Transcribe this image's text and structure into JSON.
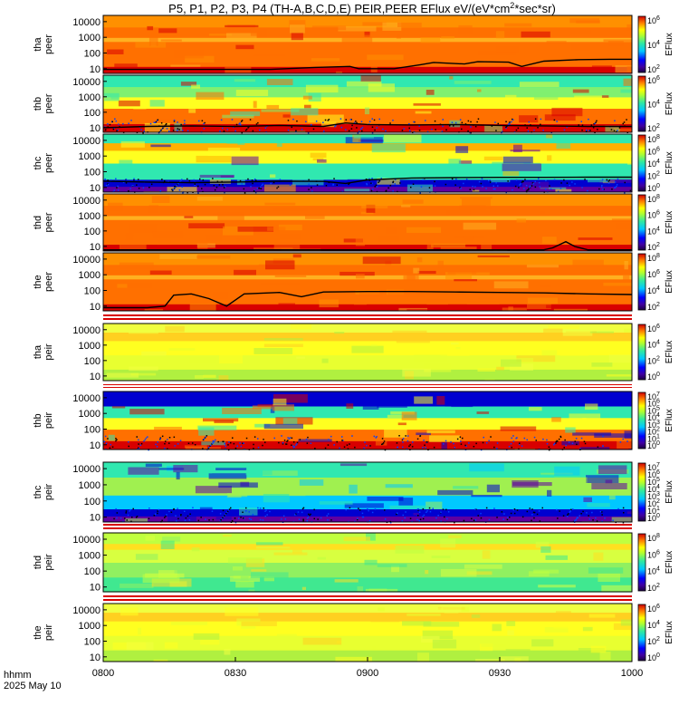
{
  "title": "P5, P1, P2, P3, P4 (TH-A,B,C,D,E) PEIR,PEER EFlux eV/(eV*cm",
  "title_sup": "2",
  "title_tail": "*sec*sr)",
  "colors": {
    "red": "#d80000",
    "orange": "#ff7000",
    "yellow": "#ffff20",
    "green": "#30e8b0",
    "cyan": "#00c8ff",
    "blue": "#0000d0",
    "purple": "#6000a0"
  },
  "chart_data": {
    "type": "heatmap",
    "x_axis": {
      "ticks": [
        "0800",
        "0830",
        "0900",
        "0930",
        "1000"
      ],
      "corner_label": "hhmm",
      "date_label": "2025 May 10",
      "range": [
        "08:00",
        "10:00"
      ]
    },
    "y_axis": {
      "scale": "log",
      "range": [
        5,
        25000
      ],
      "ticks": [
        "10",
        "100",
        "1000",
        "10000"
      ]
    },
    "colorbar_title": "EFlux",
    "panels": [
      {
        "probe": "tha",
        "species": "peer",
        "dominant": "orange",
        "cbar_ticks": [
          {
            "b": "10",
            "e": "6"
          },
          {
            "b": "10",
            "e": "4"
          },
          {
            "b": "10",
            "e": "2"
          }
        ],
        "line": [
          [
            0,
            9
          ],
          [
            30,
            9
          ],
          [
            38,
            9
          ],
          [
            48,
            12
          ],
          [
            56,
            14
          ],
          [
            58,
            10
          ],
          [
            66,
            10
          ],
          [
            72,
            18
          ],
          [
            75,
            25
          ],
          [
            82,
            20
          ],
          [
            85,
            28
          ],
          [
            92,
            26
          ],
          [
            95,
            14
          ],
          [
            100,
            30
          ],
          [
            108,
            38
          ],
          [
            115,
            40
          ],
          [
            120,
            40
          ]
        ]
      },
      {
        "probe": "thb",
        "species": "peer",
        "dominant": "mixed",
        "cbar_ticks": [
          {
            "b": "10",
            "e": "6"
          },
          {
            "b": "10",
            "e": "4"
          },
          {
            "b": "10",
            "e": "2"
          }
        ],
        "line": [
          [
            0,
            10
          ],
          [
            10,
            12
          ],
          [
            20,
            13
          ],
          [
            30,
            12
          ],
          [
            40,
            14
          ],
          [
            50,
            12
          ],
          [
            55,
            20
          ],
          [
            60,
            16
          ],
          [
            70,
            15
          ],
          [
            80,
            16
          ],
          [
            90,
            14
          ],
          [
            100,
            13
          ],
          [
            110,
            12
          ],
          [
            120,
            12
          ]
        ]
      },
      {
        "probe": "thc",
        "species": "peer",
        "dominant": "mixed",
        "cbar_ticks": [
          {
            "b": "10",
            "e": "8"
          },
          {
            "b": "10",
            "e": "6"
          },
          {
            "b": "10",
            "e": "4"
          },
          {
            "b": "10",
            "e": "2"
          },
          {
            "b": "10",
            "e": "0"
          }
        ],
        "line": [
          [
            0,
            25
          ],
          [
            10,
            22
          ],
          [
            20,
            20
          ],
          [
            30,
            22
          ],
          [
            40,
            25
          ],
          [
            50,
            24
          ],
          [
            55,
            18
          ],
          [
            60,
            30
          ],
          [
            70,
            40
          ],
          [
            80,
            42
          ],
          [
            90,
            44
          ],
          [
            100,
            44
          ],
          [
            110,
            45
          ],
          [
            120,
            45
          ]
        ]
      },
      {
        "probe": "thd",
        "species": "peer",
        "dominant": "orange",
        "cbar_ticks": [
          {
            "b": "10",
            "e": "8"
          },
          {
            "b": "10",
            "e": "6"
          },
          {
            "b": "10",
            "e": "4"
          },
          {
            "b": "10",
            "e": "2"
          }
        ],
        "line": [
          [
            0,
            6
          ],
          [
            100,
            6
          ],
          [
            102,
            8
          ],
          [
            105,
            20
          ],
          [
            107,
            10
          ],
          [
            110,
            6
          ],
          [
            120,
            6
          ]
        ]
      },
      {
        "probe": "the",
        "species": "peer",
        "dominant": "orange",
        "cbar_ticks": [
          {
            "b": "10",
            "e": "8"
          },
          {
            "b": "10",
            "e": "6"
          },
          {
            "b": "10",
            "e": "4"
          },
          {
            "b": "10",
            "e": "2"
          }
        ],
        "line": [
          [
            0,
            8
          ],
          [
            10,
            8
          ],
          [
            14,
            10
          ],
          [
            16,
            50
          ],
          [
            20,
            60
          ],
          [
            24,
            30
          ],
          [
            28,
            10
          ],
          [
            32,
            60
          ],
          [
            40,
            75
          ],
          [
            45,
            40
          ],
          [
            50,
            80
          ],
          [
            60,
            85
          ],
          [
            70,
            85
          ],
          [
            80,
            80
          ],
          [
            90,
            75
          ],
          [
            100,
            70
          ],
          [
            110,
            60
          ],
          [
            120,
            55
          ]
        ]
      },
      {
        "probe": "tha",
        "species": "peir",
        "dominant": "yellow",
        "cbar_ticks": [
          {
            "b": "10",
            "e": "6"
          },
          {
            "b": "10",
            "e": "4"
          },
          {
            "b": "10",
            "e": "2"
          },
          {
            "b": "10",
            "e": "0"
          }
        ],
        "line": []
      },
      {
        "probe": "thb",
        "species": "peir",
        "dominant": "mixed",
        "cbar_ticks": [
          {
            "b": "10",
            "e": "7"
          },
          {
            "b": "10",
            "e": "6"
          },
          {
            "b": "10",
            "e": "5"
          },
          {
            "b": "10",
            "e": "4"
          },
          {
            "b": "10",
            "e": "3"
          },
          {
            "b": "10",
            "e": "2"
          },
          {
            "b": "10",
            "e": "1"
          },
          {
            "b": "10",
            "e": "0"
          }
        ],
        "line": []
      },
      {
        "probe": "thc",
        "species": "peir",
        "dominant": "mixed",
        "cbar_ticks": [
          {
            "b": "10",
            "e": "7"
          },
          {
            "b": "10",
            "e": "6"
          },
          {
            "b": "10",
            "e": "5"
          },
          {
            "b": "10",
            "e": "4"
          },
          {
            "b": "10",
            "e": "3"
          },
          {
            "b": "10",
            "e": "2"
          },
          {
            "b": "10",
            "e": "1"
          },
          {
            "b": "10",
            "e": "0"
          }
        ],
        "line": []
      },
      {
        "probe": "thd",
        "species": "peir",
        "dominant": "green",
        "cbar_ticks": [
          {
            "b": "10",
            "e": "8"
          },
          {
            "b": "10",
            "e": "6"
          },
          {
            "b": "10",
            "e": "4"
          },
          {
            "b": "10",
            "e": "2"
          }
        ],
        "line": []
      },
      {
        "probe": "the",
        "species": "peir",
        "dominant": "yellow",
        "cbar_ticks": [
          {
            "b": "10",
            "e": "6"
          },
          {
            "b": "10",
            "e": "4"
          },
          {
            "b": "10",
            "e": "2"
          },
          {
            "b": "10",
            "e": "0"
          }
        ],
        "line": []
      }
    ]
  }
}
